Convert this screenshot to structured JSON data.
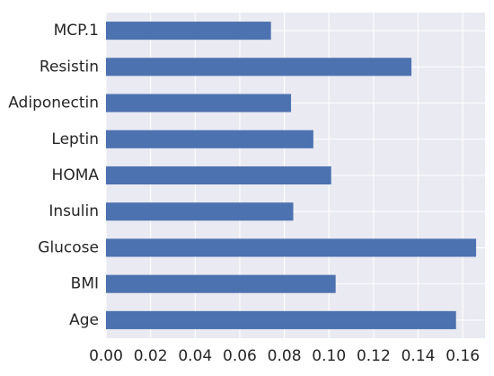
{
  "chart_data": {
    "type": "bar",
    "orientation": "horizontal",
    "categories": [
      "Age",
      "BMI",
      "Glucose",
      "Insulin",
      "HOMA",
      "Leptin",
      "Adiponectin",
      "Resistin",
      "MCP.1"
    ],
    "values": [
      0.157,
      0.103,
      0.166,
      0.084,
      0.101,
      0.093,
      0.083,
      0.137,
      0.074
    ],
    "xticks": [
      "0.00",
      "0.02",
      "0.04",
      "0.06",
      "0.08",
      "0.10",
      "0.12",
      "0.14",
      "0.16"
    ],
    "xlim": [
      0,
      0.17
    ],
    "grid": true,
    "legend": "none",
    "colors": {
      "bar": "#4c72b0",
      "plot_background": "#eaeaf2",
      "grid": "#ffffff",
      "text": "#262626"
    }
  }
}
